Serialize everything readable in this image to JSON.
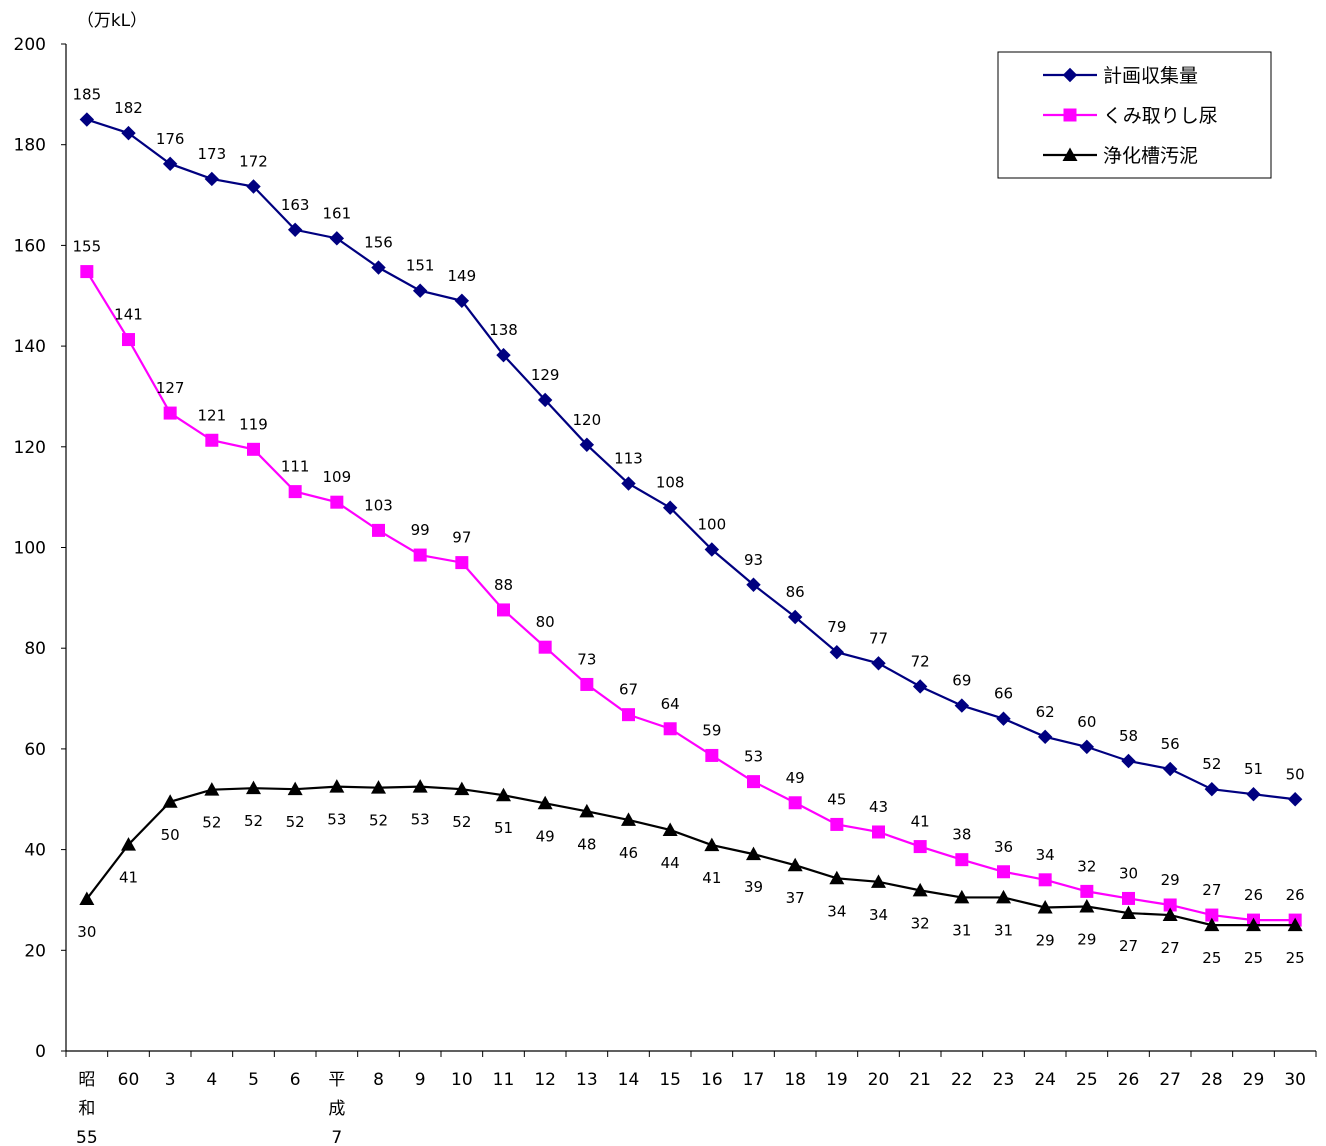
{
  "chart_data": {
    "type": "line",
    "unit_label": "（万kL）",
    "ylim": [
      0,
      200
    ],
    "yticks": [
      "0",
      "20",
      "40",
      "60",
      "80",
      "100",
      "120",
      "140",
      "160",
      "180",
      "200"
    ],
    "categories": [
      [
        "昭",
        "和",
        "55"
      ],
      [
        "60"
      ],
      [
        "3"
      ],
      [
        "4"
      ],
      [
        "5"
      ],
      [
        "6"
      ],
      [
        "平",
        "成",
        "7"
      ],
      [
        "8"
      ],
      [
        "9"
      ],
      [
        "10"
      ],
      [
        "11"
      ],
      [
        "12"
      ],
      [
        "13"
      ],
      [
        "14"
      ],
      [
        "15"
      ],
      [
        "16"
      ],
      [
        "17"
      ],
      [
        "18"
      ],
      [
        "19"
      ],
      [
        "20"
      ],
      [
        "21"
      ],
      [
        "22"
      ],
      [
        "23"
      ],
      [
        "24"
      ],
      [
        "25"
      ],
      [
        "26"
      ],
      [
        "27"
      ],
      [
        "28"
      ],
      [
        "29"
      ],
      [
        "30"
      ]
    ],
    "legend_position": "top-right",
    "series": [
      {
        "name": "計画収集量",
        "color": "#000080",
        "marker": "diamond",
        "values": [
          185,
          182.3,
          176.2,
          173.2,
          171.7,
          163.1,
          161.4,
          155.6,
          151,
          149,
          138.2,
          129.3,
          120.4,
          112.7,
          107.9,
          99.6,
          92.6,
          86.2,
          79.2,
          77,
          72.4,
          68.6,
          66,
          62.4,
          60.4,
          57.6,
          56,
          52,
          51,
          50
        ],
        "labels": [
          "185",
          "182",
          "176",
          "173",
          "172",
          "163",
          "161",
          "156",
          "151",
          "149",
          "138",
          "129",
          "120",
          "113",
          "108",
          "100",
          "93",
          "86",
          "79",
          "77",
          "72",
          "69",
          "66",
          "62",
          "60",
          "58",
          "56",
          "52",
          "51",
          "50"
        ]
      },
      {
        "name": "くみ取りし尿",
        "color": "#FF00FF",
        "marker": "square",
        "values": [
          154.8,
          141.3,
          126.7,
          121.3,
          119.5,
          111.1,
          109,
          103.4,
          98.5,
          97,
          87.6,
          80.2,
          72.8,
          66.8,
          64,
          58.7,
          53.5,
          49.3,
          45,
          43.5,
          40.6,
          38,
          35.6,
          34,
          31.7,
          30.3,
          29,
          27,
          26,
          26
        ],
        "labels": [
          "155",
          "141",
          "127",
          "121",
          "119",
          "111",
          "109",
          "103",
          "99",
          "97",
          "88",
          "80",
          "73",
          "67",
          "64",
          "59",
          "53",
          "49",
          "45",
          "43",
          "41",
          "38",
          "36",
          "34",
          "32",
          "30",
          "29",
          "27",
          "26",
          "26"
        ]
      },
      {
        "name": "浄化槽汚泥",
        "color": "#000000",
        "marker": "triangle",
        "values": [
          30.2,
          41,
          49.5,
          51.9,
          52.2,
          52,
          52.5,
          52.3,
          52.5,
          52,
          50.8,
          49.2,
          47.6,
          45.9,
          43.9,
          40.9,
          39.1,
          36.9,
          34.3,
          33.6,
          31.9,
          30.5,
          30.5,
          28.5,
          28.7,
          27.4,
          27,
          25,
          25,
          25
        ],
        "labels": [
          "30",
          "41",
          "50",
          "52",
          "52",
          "52",
          "53",
          "52",
          "53",
          "52",
          "51",
          "49",
          "48",
          "46",
          "44",
          "41",
          "39",
          "37",
          "34",
          "34",
          "32",
          "31",
          "31",
          "29",
          "29",
          "27",
          "27",
          "25",
          "25",
          "25"
        ]
      }
    ]
  }
}
